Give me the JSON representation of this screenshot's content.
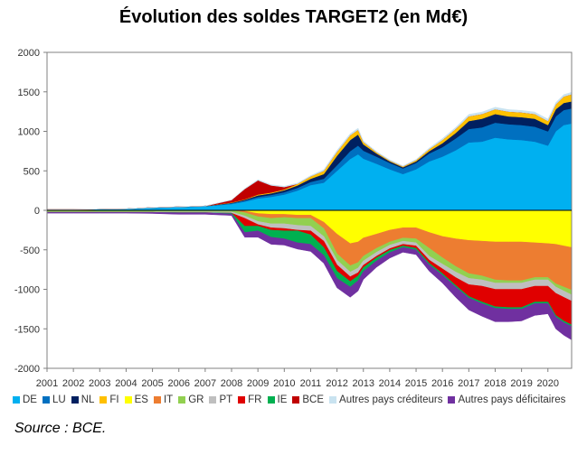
{
  "title": "Évolution des soldes TARGET2 (en Md€)",
  "source": "Source : BCE.",
  "chart_data": {
    "type": "area",
    "title": "Évolution des soldes TARGET2 (en Md€)",
    "xlabel": "",
    "ylabel": "",
    "xlim": [
      2001,
      2020.9
    ],
    "ylim": [
      -2000,
      2000
    ],
    "y_ticks": [
      2000,
      1500,
      1000,
      500,
      0,
      -500,
      -1000,
      -1500,
      -2000
    ],
    "x_ticks": [
      "2001",
      "2002",
      "2003",
      "2004",
      "2005",
      "2006",
      "2007",
      "2008",
      "2009",
      "2010",
      "2011",
      "2012",
      "2013",
      "2014",
      "2015",
      "2016",
      "2017",
      "2018",
      "2019",
      "2020"
    ],
    "grid": false,
    "legend_position": "bottom",
    "stacked": true,
    "x": [
      2001,
      2002,
      2003,
      2004,
      2005,
      2006,
      2007,
      2008,
      2008.5,
      2009,
      2009.5,
      2010,
      2010.5,
      2011,
      2011.5,
      2012,
      2012.5,
      2012.8,
      2013,
      2013.5,
      2014,
      2014.5,
      2015,
      2015.5,
      2016,
      2016.5,
      2017,
      2017.5,
      2018,
      2018.5,
      2019,
      2019.5,
      2020,
      2020.3,
      2020.6,
      2020.9
    ],
    "series": [
      {
        "name": "DE",
        "color": "#00B0F0",
        "sign": "positive",
        "values": [
          10,
          10,
          15,
          20,
          30,
          40,
          50,
          80,
          110,
          150,
          170,
          200,
          250,
          320,
          350,
          500,
          650,
          710,
          655,
          590,
          520,
          460,
          520,
          620,
          680,
          760,
          860,
          870,
          920,
          900,
          890,
          870,
          820,
          1000,
          1080,
          1100
        ]
      },
      {
        "name": "LU",
        "color": "#0070C0",
        "sign": "positive",
        "values": [
          0,
          0,
          0,
          0,
          5,
          5,
          5,
          10,
          15,
          20,
          25,
          30,
          35,
          40,
          50,
          70,
          100,
          110,
          100,
          90,
          80,
          70,
          80,
          100,
          120,
          150,
          170,
          180,
          190,
          190,
          190,
          190,
          180,
          190,
          190,
          190
        ]
      },
      {
        "name": "NL",
        "color": "#002060",
        "sign": "positive",
        "values": [
          0,
          0,
          0,
          0,
          0,
          0,
          0,
          5,
          10,
          20,
          20,
          25,
          30,
          40,
          60,
          120,
          140,
          140,
          80,
          40,
          20,
          15,
          20,
          30,
          50,
          70,
          100,
          110,
          110,
          100,
          100,
          100,
          80,
          90,
          90,
          90
        ]
      },
      {
        "name": "FI",
        "color": "#FFC000",
        "sign": "positive",
        "values": [
          0,
          0,
          0,
          0,
          0,
          0,
          0,
          5,
          5,
          10,
          10,
          10,
          20,
          30,
          40,
          50,
          60,
          60,
          30,
          15,
          10,
          10,
          15,
          25,
          40,
          50,
          60,
          60,
          60,
          60,
          60,
          60,
          50,
          60,
          80,
          90
        ]
      },
      {
        "name": "BCE",
        "color": "#C00000",
        "sign": "positive",
        "values": [
          0,
          0,
          0,
          0,
          0,
          0,
          0,
          30,
          130,
          180,
          90,
          30,
          0,
          0,
          0,
          0,
          0,
          0,
          0,
          0,
          0,
          0,
          0,
          0,
          0,
          0,
          0,
          0,
          0,
          0,
          0,
          0,
          0,
          0,
          0,
          0
        ]
      },
      {
        "name": "Autres pays créditeurs",
        "color": "#C9E3F0",
        "sign": "positive",
        "values": [
          0,
          0,
          0,
          0,
          0,
          0,
          0,
          0,
          5,
          10,
          10,
          10,
          10,
          10,
          15,
          20,
          20,
          20,
          15,
          10,
          10,
          10,
          10,
          15,
          20,
          20,
          25,
          25,
          25,
          25,
          25,
          25,
          25,
          25,
          25,
          25
        ]
      },
      {
        "name": "ES",
        "color": "#FFFF00",
        "sign": "negative",
        "values": [
          0,
          0,
          0,
          0,
          0,
          0,
          0,
          0,
          -10,
          -40,
          -50,
          -50,
          -60,
          -60,
          -150,
          -300,
          -420,
          -400,
          -350,
          -300,
          -250,
          -220,
          -220,
          -280,
          -330,
          -360,
          -380,
          -390,
          -400,
          -400,
          -400,
          -410,
          -420,
          -430,
          -450,
          -470
        ]
      },
      {
        "name": "IT",
        "color": "#ED7D31",
        "sign": "negative",
        "values": [
          0,
          0,
          0,
          0,
          0,
          0,
          0,
          0,
          -20,
          -40,
          -50,
          -40,
          -40,
          -40,
          -80,
          -250,
          -280,
          -260,
          -230,
          -180,
          -150,
          -130,
          -140,
          -200,
          -270,
          -350,
          -420,
          -440,
          -480,
          -490,
          -490,
          -440,
          -430,
          -500,
          -520,
          -540
        ]
      },
      {
        "name": "GR",
        "color": "#92D050",
        "sign": "negative",
        "values": [
          -20,
          -20,
          -20,
          -20,
          -20,
          -20,
          -20,
          -20,
          -40,
          -60,
          -70,
          -80,
          -90,
          -100,
          -100,
          -80,
          -80,
          -70,
          -60,
          -50,
          -40,
          -40,
          -50,
          -100,
          -80,
          -70,
          -60,
          -50,
          -40,
          -30,
          -30,
          -30,
          -30,
          -40,
          -50,
          -60
        ]
      },
      {
        "name": "PT",
        "color": "#BFBFBF",
        "sign": "negative",
        "values": [
          -5,
          -5,
          -5,
          -5,
          -5,
          -10,
          -10,
          -15,
          -30,
          -40,
          -50,
          -60,
          -60,
          -60,
          -60,
          -60,
          -60,
          -60,
          -55,
          -50,
          -45,
          -40,
          -40,
          -50,
          -60,
          -70,
          -80,
          -80,
          -80,
          -80,
          -80,
          -80,
          -80,
          -80,
          -80,
          -80
        ]
      },
      {
        "name": "FR",
        "color": "#E00000",
        "sign": "negative",
        "values": [
          0,
          0,
          0,
          0,
          0,
          0,
          0,
          0,
          -100,
          -20,
          -30,
          -30,
          -10,
          -50,
          -80,
          -80,
          -60,
          -40,
          -30,
          -20,
          -20,
          -20,
          -30,
          -40,
          -60,
          -100,
          -150,
          -200,
          -220,
          -230,
          -230,
          -200,
          -200,
          -280,
          -300,
          -300
        ]
      },
      {
        "name": "IE",
        "color": "#00B050",
        "sign": "negative",
        "values": [
          0,
          0,
          0,
          0,
          0,
          0,
          0,
          -10,
          -80,
          -60,
          -90,
          -100,
          -150,
          -120,
          -100,
          -90,
          -70,
          -60,
          -50,
          -40,
          -30,
          -20,
          -20,
          -20,
          -20,
          -20,
          -20,
          -20,
          -20,
          -20,
          -20,
          -20,
          -20,
          -20,
          -20,
          -20
        ]
      },
      {
        "name": "Autres pays déficitaires",
        "color": "#7030A0",
        "sign": "negative",
        "values": [
          -10,
          -10,
          -10,
          -10,
          -15,
          -20,
          -20,
          -20,
          -60,
          -80,
          -90,
          -80,
          -80,
          -90,
          -100,
          -120,
          -130,
          -130,
          -100,
          -80,
          -70,
          -60,
          -60,
          -80,
          -100,
          -130,
          -150,
          -160,
          -170,
          -160,
          -150,
          -150,
          -130,
          -150,
          -160,
          -170
        ]
      }
    ]
  },
  "legend": [
    {
      "label": "DE",
      "color": "#00B0F0"
    },
    {
      "label": "LU",
      "color": "#0070C0"
    },
    {
      "label": "NL",
      "color": "#002060"
    },
    {
      "label": "FI",
      "color": "#FFC000"
    },
    {
      "label": "ES",
      "color": "#FFFF00"
    },
    {
      "label": "IT",
      "color": "#ED7D31"
    },
    {
      "label": "GR",
      "color": "#92D050"
    },
    {
      "label": "PT",
      "color": "#BFBFBF"
    },
    {
      "label": "FR",
      "color": "#E00000"
    },
    {
      "label": "IE",
      "color": "#00B050"
    },
    {
      "label": "BCE",
      "color": "#C00000"
    },
    {
      "label": "Autres pays créditeurs",
      "color": "#C9E3F0"
    },
    {
      "label": "Autres pays déficitaires",
      "color": "#7030A0"
    }
  ]
}
